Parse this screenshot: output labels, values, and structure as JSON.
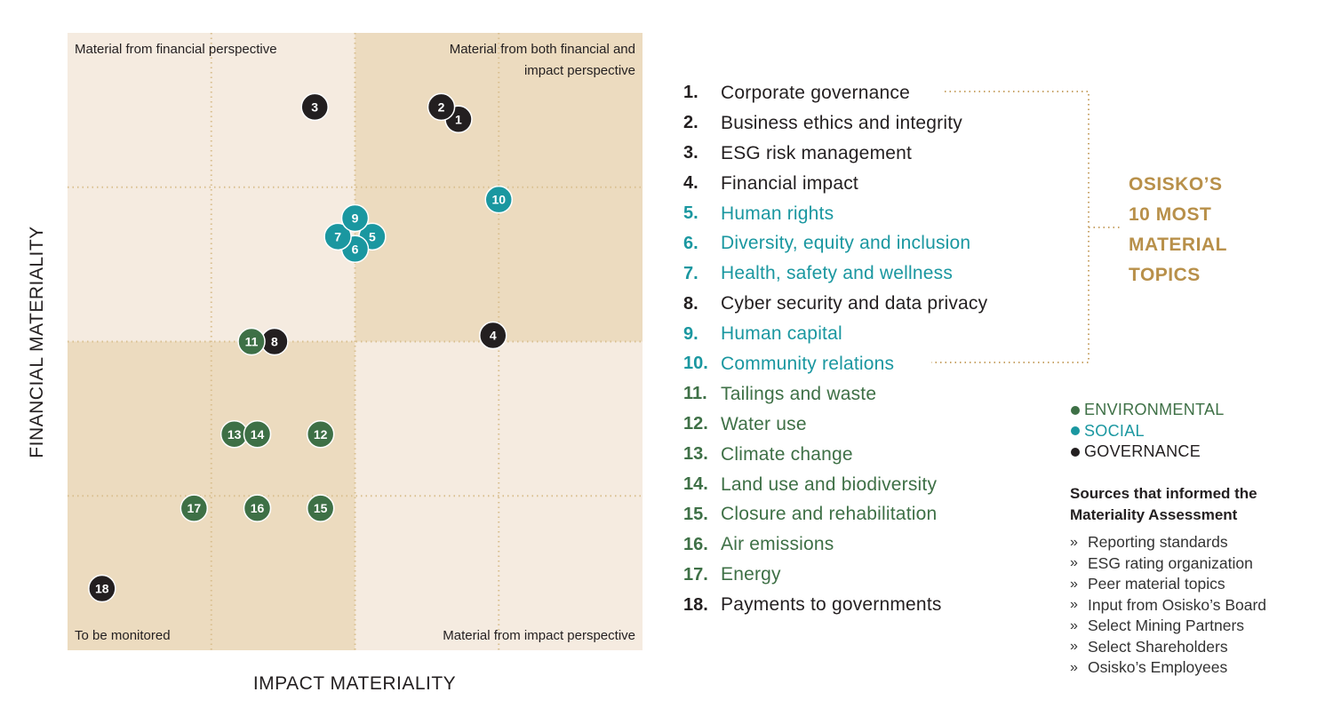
{
  "chart_data": {
    "type": "scatter",
    "xlabel": "IMPACT MATERIALITY",
    "ylabel": "FINANCIAL MATERIALITY",
    "xlim": [
      0,
      100
    ],
    "ylim": [
      0,
      100
    ],
    "grid": true,
    "quadrants": {
      "top_left": "Material from financial perspective",
      "top_right": "Material from both financial and impact perspective",
      "bottom_left": "To be monitored",
      "bottom_right": "Material from impact perspective"
    },
    "colors": {
      "E": "#3e7046",
      "S": "#1a97a0",
      "G": "#231f20",
      "quad_dark": "#ecdbbf",
      "quad_light": "#f5ebe0",
      "highlight": "#b8904a"
    },
    "points": [
      {
        "label": "1",
        "x": 68,
        "y": 86,
        "cat": "G"
      },
      {
        "label": "2",
        "x": 65,
        "y": 88,
        "cat": "G"
      },
      {
        "label": "3",
        "x": 43,
        "y": 88,
        "cat": "G"
      },
      {
        "label": "4",
        "x": 74,
        "y": 51,
        "cat": "G"
      },
      {
        "label": "5",
        "x": 53,
        "y": 67,
        "cat": "S"
      },
      {
        "label": "6",
        "x": 50,
        "y": 65,
        "cat": "S"
      },
      {
        "label": "7",
        "x": 47,
        "y": 67,
        "cat": "S"
      },
      {
        "label": "8",
        "x": 36,
        "y": 50,
        "cat": "G"
      },
      {
        "label": "9",
        "x": 50,
        "y": 70,
        "cat": "S"
      },
      {
        "label": "10",
        "x": 75,
        "y": 73,
        "cat": "S"
      },
      {
        "label": "11",
        "x": 32,
        "y": 50,
        "cat": "E"
      },
      {
        "label": "12",
        "x": 44,
        "y": 35,
        "cat": "E"
      },
      {
        "label": "13",
        "x": 29,
        "y": 35,
        "cat": "E"
      },
      {
        "label": "14",
        "x": 33,
        "y": 35,
        "cat": "E"
      },
      {
        "label": "15",
        "x": 44,
        "y": 23,
        "cat": "E"
      },
      {
        "label": "16",
        "x": 33,
        "y": 23,
        "cat": "E"
      },
      {
        "label": "17",
        "x": 22,
        "y": 23,
        "cat": "E"
      },
      {
        "label": "18",
        "x": 6,
        "y": 10,
        "cat": "G"
      }
    ]
  },
  "topics": [
    {
      "num": "1.",
      "label": "Corporate governance",
      "cat": "G"
    },
    {
      "num": "2.",
      "label": "Business ethics and integrity",
      "cat": "G"
    },
    {
      "num": "3.",
      "label": "ESG risk management",
      "cat": "G"
    },
    {
      "num": "4.",
      "label": "Financial impact",
      "cat": "G"
    },
    {
      "num": "5.",
      "label": "Human rights",
      "cat": "S"
    },
    {
      "num": "6.",
      "label": "Diversity, equity and inclusion",
      "cat": "S"
    },
    {
      "num": "7.",
      "label": "Health, safety and wellness",
      "cat": "S"
    },
    {
      "num": "8.",
      "label": "Cyber security and data privacy",
      "cat": "G"
    },
    {
      "num": "9.",
      "label": "Human capital",
      "cat": "S"
    },
    {
      "num": "10.",
      "label": "Community relations",
      "cat": "S"
    },
    {
      "num": "11.",
      "label": "Tailings and waste",
      "cat": "E"
    },
    {
      "num": "12.",
      "label": "Water use",
      "cat": "E"
    },
    {
      "num": "13.",
      "label": "Climate change",
      "cat": "E"
    },
    {
      "num": "14.",
      "label": "Land use and biodiversity",
      "cat": "E"
    },
    {
      "num": "15.",
      "label": "Closure and rehabilitation",
      "cat": "E"
    },
    {
      "num": "16.",
      "label": "Air emissions",
      "cat": "E"
    },
    {
      "num": "17.",
      "label": "Energy",
      "cat": "E"
    },
    {
      "num": "18.",
      "label": "Payments to governments",
      "cat": "G"
    }
  ],
  "highlight": {
    "lines": [
      "OSISKO’S",
      "10 MOST",
      "MATERIAL",
      "TOPICS"
    ]
  },
  "legend": [
    {
      "label": "ENVIRONMENTAL",
      "cat": "E"
    },
    {
      "label": "SOCIAL",
      "cat": "S"
    },
    {
      "label": "GOVERNANCE",
      "cat": "G"
    }
  ],
  "sources": {
    "title": "Sources that informed the Materiality Assessment",
    "bullet": "»",
    "items": [
      "Reporting standards",
      "ESG rating organization",
      "Peer material topics",
      "Input from Osisko’s Board",
      "Select Mining Partners",
      "Select Shareholders",
      "Osisko’s Employees"
    ]
  }
}
